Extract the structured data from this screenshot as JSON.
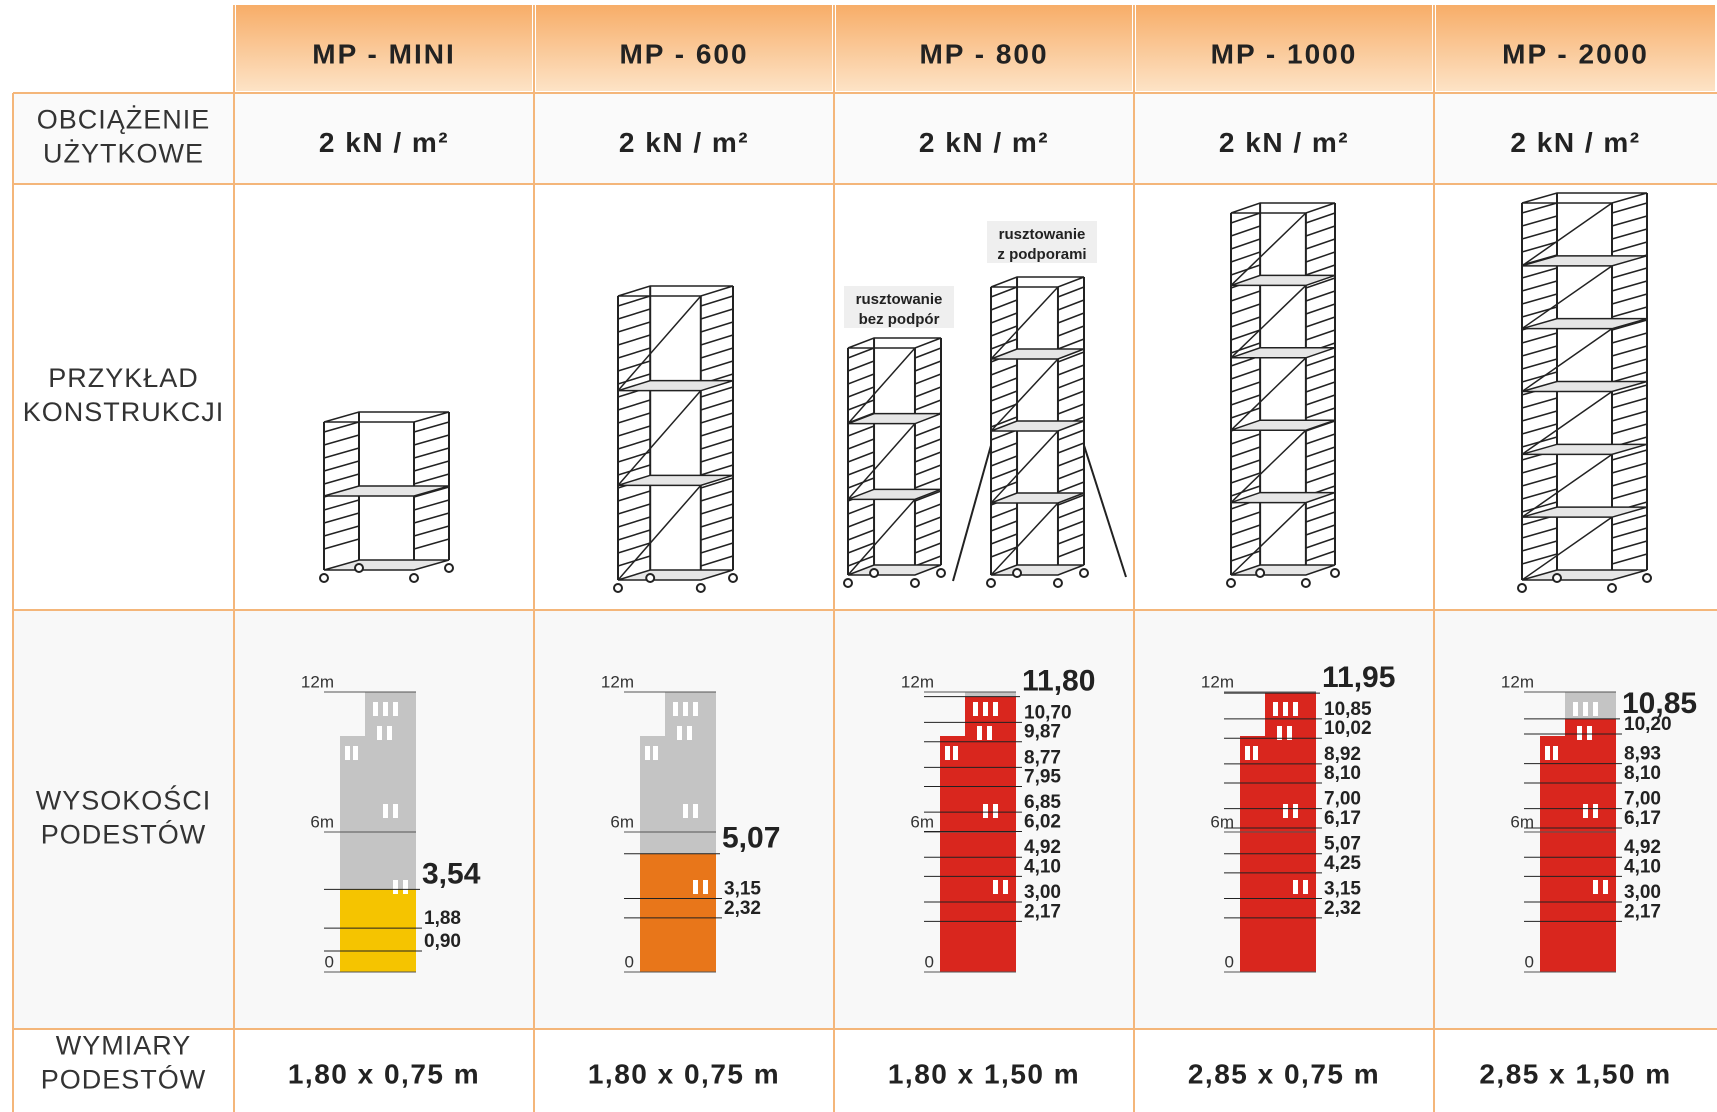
{
  "header": {
    "columns": [
      "MP - MINI",
      "MP - 600",
      "MP - 800",
      "MP - 1000",
      "MP - 2000"
    ]
  },
  "rows": {
    "load": {
      "label": [
        "OBCIĄŻENIE",
        "UŻYTKOWE"
      ],
      "values": [
        "2 kN / m²",
        "2 kN / m²",
        "2 kN / m²",
        "2 kN / m²",
        "2 kN / m²"
      ]
    },
    "example": {
      "label": [
        "PRZYKŁAD",
        "KONSTRUKCJI"
      ],
      "captions": [
        [
          "rusztowanie",
          "bez podpór"
        ],
        [
          "rusztowanie",
          "z podporami"
        ]
      ]
    },
    "heights": {
      "label": [
        "WYSOKOŚCI",
        "PODESTÓW"
      ],
      "ylim": [
        0,
        12
      ],
      "yticks": [
        0,
        {
          "value": 6,
          "label": "6m"
        },
        {
          "value": 12,
          "label": "12m"
        }
      ],
      "columns": [
        {
          "color": "#f5c400",
          "max": {
            "value": 3.54,
            "label": "3,54"
          },
          "levels": [
            {
              "value": 1.88,
              "label": "1,88"
            },
            {
              "value": 0.9,
              "label": "0,90"
            }
          ]
        },
        {
          "color": "#e8761a",
          "max": {
            "value": 5.07,
            "label": "5,07"
          },
          "levels": [
            {
              "value": 3.15,
              "label": "3,15"
            },
            {
              "value": 2.32,
              "label": "2,32"
            }
          ]
        },
        {
          "color": "#d9261e",
          "max": {
            "value": 11.8,
            "label": "11,80"
          },
          "levels": [
            {
              "value": 10.7,
              "label": "10,70"
            },
            {
              "value": 9.87,
              "label": "9,87"
            },
            {
              "value": 8.77,
              "label": "8,77"
            },
            {
              "value": 7.95,
              "label": "7,95"
            },
            {
              "value": 6.85,
              "label": "6,85"
            },
            {
              "value": 6.02,
              "label": "6,02"
            },
            {
              "value": 4.92,
              "label": "4,92"
            },
            {
              "value": 4.1,
              "label": "4,10"
            },
            {
              "value": 3,
              "label": "3,00"
            },
            {
              "value": 2.17,
              "label": "2,17"
            }
          ]
        },
        {
          "color": "#d9261e",
          "max": {
            "value": 11.95,
            "label": "11,95"
          },
          "levels": [
            {
              "value": 10.85,
              "label": "10,85"
            },
            {
              "value": 10.02,
              "label": "10,02"
            },
            {
              "value": 8.92,
              "label": "8,92"
            },
            {
              "value": 8.1,
              "label": "8,10"
            },
            {
              "value": 7,
              "label": "7,00"
            },
            {
              "value": 6.17,
              "label": "6,17"
            },
            {
              "value": 5.07,
              "label": "5,07"
            },
            {
              "value": 4.25,
              "label": "4,25"
            },
            {
              "value": 3.15,
              "label": "3,15"
            },
            {
              "value": 2.32,
              "label": "2,32"
            }
          ]
        },
        {
          "color": "#d9261e",
          "max": {
            "value": 10.85,
            "label": "10,85"
          },
          "levels": [
            {
              "value": 10.2,
              "label": "10,20"
            },
            {
              "value": 8.93,
              "label": "8,93"
            },
            {
              "value": 8.1,
              "label": "8,10"
            },
            {
              "value": 7,
              "label": "7,00"
            },
            {
              "value": 6.17,
              "label": "6,17"
            },
            {
              "value": 4.92,
              "label": "4,92"
            },
            {
              "value": 4.1,
              "label": "4,10"
            },
            {
              "value": 3,
              "label": "3,00"
            },
            {
              "value": 2.17,
              "label": "2,17"
            }
          ]
        }
      ]
    },
    "dimensions": {
      "label": [
        "WYMIARY",
        "PODESTÓW"
      ],
      "values": [
        "1,80 x 0,75 m",
        "1,80 x 0,75 m",
        "1,80 x 1,50 m",
        "2,85 x 0,75 m",
        "2,85 x 1,50 m"
      ]
    }
  }
}
